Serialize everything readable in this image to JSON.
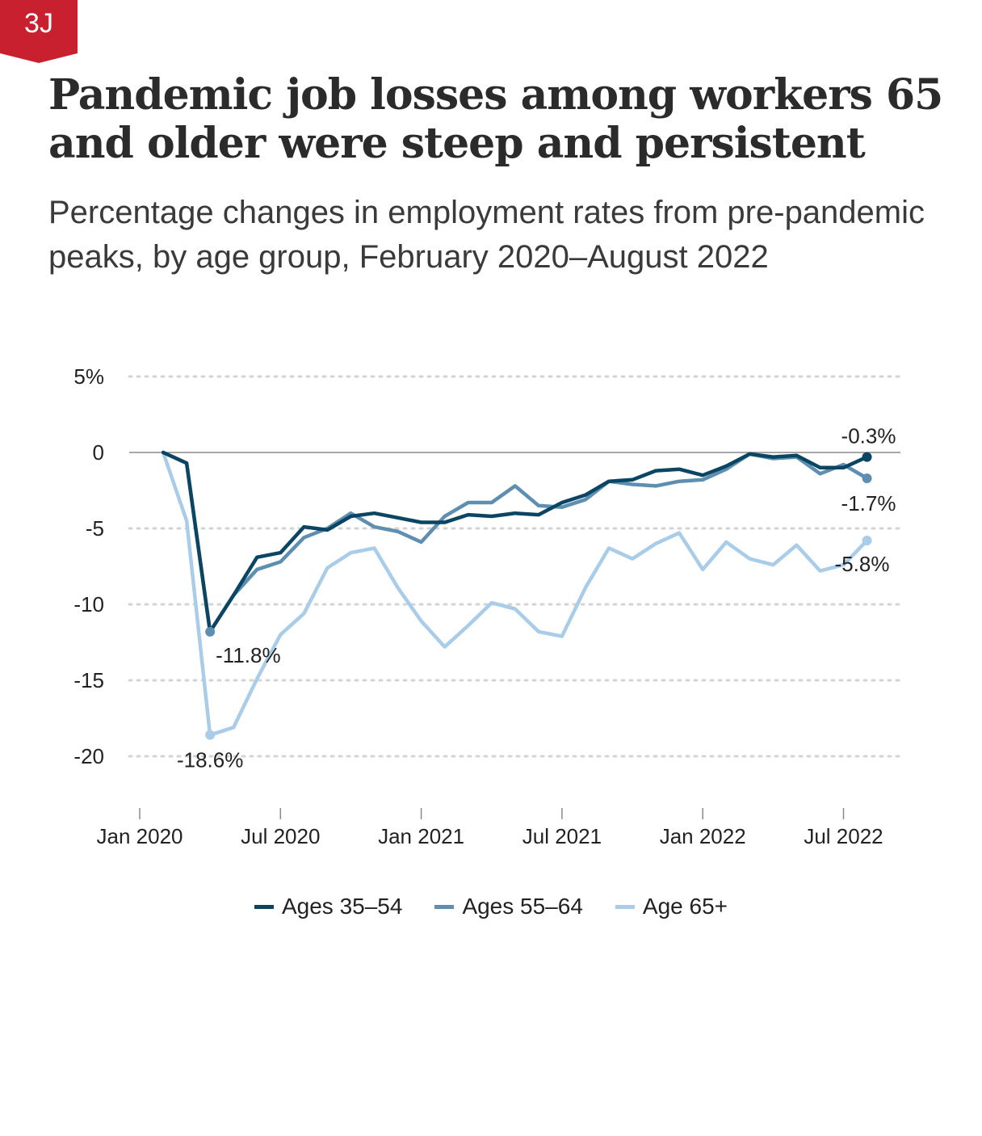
{
  "badge": {
    "label": "3J",
    "color": "#c8202f"
  },
  "title": "Pandemic job losses among workers 65 and older were steep and persistent",
  "subtitle": "Percentage changes in employment rates from pre-pandemic peaks, by age group, February 2020–August 2022",
  "chart_data": {
    "type": "line",
    "title": "",
    "xlabel": "",
    "ylabel": "",
    "ylim": [
      -23,
      5
    ],
    "yticks": [
      5,
      0,
      -5,
      -10,
      -15,
      -20
    ],
    "ytick_labels": [
      "5%",
      "0",
      "-5",
      "-10",
      "-15",
      "-20"
    ],
    "xticks": [
      "2020-01",
      "2020-07",
      "2021-01",
      "2021-07",
      "2022-01",
      "2022-07"
    ],
    "xtick_labels": [
      "Jan 2020",
      "Jul 2020",
      "Jan 2021",
      "Jul 2021",
      "Jan 2022",
      "Jul 2022"
    ],
    "x": [
      "2020-02",
      "2020-03",
      "2020-04",
      "2020-05",
      "2020-06",
      "2020-07",
      "2020-08",
      "2020-09",
      "2020-10",
      "2020-11",
      "2020-12",
      "2021-01",
      "2021-02",
      "2021-03",
      "2021-04",
      "2021-05",
      "2021-06",
      "2021-07",
      "2021-08",
      "2021-09",
      "2021-10",
      "2021-11",
      "2021-12",
      "2022-01",
      "2022-02",
      "2022-03",
      "2022-04",
      "2022-05",
      "2022-06",
      "2022-07",
      "2022-08"
    ],
    "grid": true,
    "legend_position": "bottom",
    "series": [
      {
        "name": "Ages 35–54",
        "color": "#0b4564",
        "values": [
          0,
          -0.7,
          -11.8,
          -9.4,
          -6.9,
          -6.6,
          -4.9,
          -5.1,
          -4.2,
          -4.0,
          -4.3,
          -4.6,
          -4.6,
          -4.1,
          -4.2,
          -4.0,
          -4.1,
          -3.3,
          -2.8,
          -1.9,
          -1.8,
          -1.2,
          -1.1,
          -1.5,
          -0.9,
          -0.1,
          -0.3,
          -0.2,
          -1.0,
          -1.0,
          -0.3
        ],
        "end_label": "-0.3%",
        "trough_label": ""
      },
      {
        "name": "Ages 55–64",
        "color": "#5e8fb1",
        "values": [
          0,
          -0.7,
          -11.8,
          -9.4,
          -7.7,
          -7.2,
          -5.6,
          -5.0,
          -4.0,
          -4.9,
          -5.2,
          -5.9,
          -4.2,
          -3.3,
          -3.3,
          -2.2,
          -3.5,
          -3.6,
          -3.1,
          -1.9,
          -2.1,
          -2.2,
          -1.9,
          -1.8,
          -1.1,
          -0.1,
          -0.4,
          -0.3,
          -1.4,
          -0.8,
          -1.7
        ],
        "end_label": "-1.7%",
        "trough_label": "-11.8%"
      },
      {
        "name": "Age 65+",
        "color": "#a9cce9",
        "values": [
          0,
          -4.5,
          -18.6,
          -18.1,
          -14.9,
          -12.0,
          -10.6,
          -7.6,
          -6.6,
          -6.3,
          -8.9,
          -11.1,
          -12.8,
          -11.4,
          -9.9,
          -10.3,
          -11.8,
          -12.1,
          -8.9,
          -6.3,
          -7.0,
          -6.0,
          -5.3,
          -7.7,
          -5.9,
          -7.0,
          -7.4,
          -6.1,
          -7.8,
          -7.4,
          -5.8
        ],
        "end_label": "-5.8%",
        "trough_label": "-18.6%"
      }
    ]
  }
}
